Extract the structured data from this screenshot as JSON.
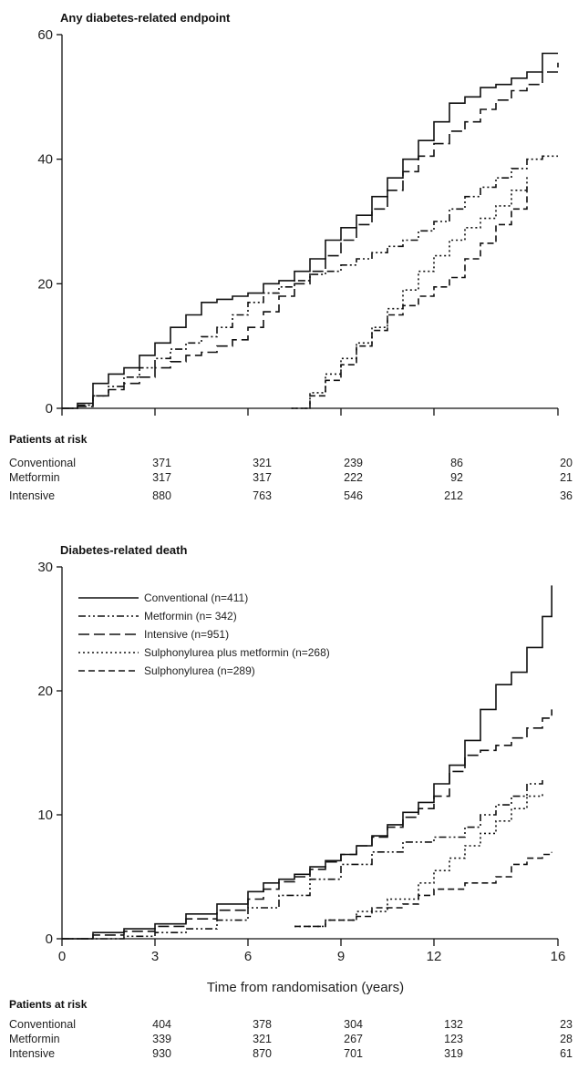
{
  "chart_data": [
    {
      "type": "line",
      "title": "Any diabetes-related endpoint",
      "xlabel": "",
      "ylabel": "",
      "xlim": [
        0,
        16
      ],
      "ylim": [
        0,
        60
      ],
      "yticks": [
        0,
        20,
        40,
        60
      ],
      "xtick_values": [
        0,
        3,
        6,
        9,
        12,
        16
      ],
      "xtick_labels": [],
      "series": [
        {
          "key": "conventional",
          "dash": "",
          "x": [
            0,
            0.5,
            1,
            1.5,
            2,
            2.5,
            3,
            3.5,
            4,
            4.5,
            5,
            5.5,
            6,
            6.5,
            7,
            7.5,
            8,
            8.5,
            9,
            9.5,
            10,
            10.5,
            11,
            11.5,
            12,
            12.5,
            13,
            13.5,
            14,
            14.5,
            15,
            15.5,
            16
          ],
          "y": [
            0,
            0.8,
            4,
            5.5,
            6.5,
            8.5,
            10.5,
            13,
            15,
            17,
            17.5,
            18,
            18.5,
            20,
            20.5,
            22,
            24,
            27,
            29,
            31,
            34,
            37,
            40,
            43,
            46,
            49,
            50,
            51.5,
            52,
            53,
            54,
            57,
            57
          ]
        },
        {
          "key": "metformin",
          "dash": "8,3,2,3,2,3",
          "x": [
            0,
            0.5,
            1,
            1.5,
            2,
            2.5,
            3,
            3.5,
            4,
            4.5,
            5,
            5.5,
            6,
            6.5,
            7,
            7.5,
            8,
            8.5,
            9,
            9.5,
            10,
            10.5,
            11,
            11.5,
            12,
            12.5,
            13,
            13.5,
            14,
            14.5,
            15,
            15.5,
            16
          ],
          "y": [
            0,
            0.5,
            2,
            3.5,
            5,
            6.5,
            8,
            9.5,
            10.5,
            11.5,
            13,
            15,
            17,
            18.5,
            19.5,
            20.5,
            21.5,
            22,
            23,
            24,
            25,
            26,
            27,
            28.5,
            30,
            32,
            34,
            35.5,
            37,
            38.5,
            40,
            40.5,
            40.5
          ]
        },
        {
          "key": "intensive",
          "dash": "12,5",
          "x": [
            0,
            0.5,
            1,
            1.5,
            2,
            2.5,
            3,
            3.5,
            4,
            4.5,
            5,
            5.5,
            6,
            6.5,
            7,
            7.5,
            8,
            8.5,
            9,
            9.5,
            10,
            10.5,
            11,
            11.5,
            12,
            12.5,
            13,
            13.5,
            14,
            14.5,
            15,
            15.5,
            16
          ],
          "y": [
            0,
            0.3,
            2,
            3,
            4,
            5,
            6.5,
            7.5,
            8.5,
            9,
            10,
            11,
            13,
            15.5,
            18,
            20,
            22,
            24.5,
            27,
            29.5,
            32,
            35,
            38,
            40.5,
            42.5,
            44.5,
            46,
            48,
            49.5,
            51,
            52,
            54,
            55.5
          ]
        },
        {
          "key": "sulph_metformin",
          "dash": "2,3",
          "x": [
            7.4,
            8,
            8.5,
            9,
            9.5,
            10,
            10.5,
            11,
            11.5,
            12,
            12.5,
            13,
            13.5,
            14,
            14.5,
            15
          ],
          "y": [
            0,
            2.5,
            5.5,
            8,
            10.5,
            13,
            16,
            19,
            22,
            24.5,
            27,
            29,
            30.5,
            32.5,
            35,
            37.5
          ]
        },
        {
          "key": "sulphonylurea",
          "dash": "7,4",
          "x": [
            7.4,
            8,
            8.5,
            9,
            9.5,
            10,
            10.5,
            11,
            11.5,
            12,
            12.5,
            13,
            13.5,
            14,
            14.5,
            15
          ],
          "y": [
            0,
            2,
            4.5,
            7,
            10,
            12.5,
            15,
            16.5,
            18,
            19.5,
            21,
            24,
            26.5,
            29.5,
            32,
            35.5
          ]
        }
      ],
      "risk_table": {
        "heading": "Patients at risk",
        "x": [
          3,
          6,
          9,
          12,
          16
        ],
        "rows": [
          {
            "label": "Conventional",
            "values": [
              "371",
              "321",
              "239",
              "86",
              "20"
            ]
          },
          {
            "label": "Metformin",
            "values": [
              "317",
              "317",
              "222",
              "92",
              "21"
            ]
          },
          {
            "label": "Intensive",
            "values": [
              "880",
              "763",
              "546",
              "212",
              "36"
            ]
          }
        ]
      }
    },
    {
      "type": "line",
      "title": "Diabetes-related death",
      "xlabel": "Time from randomisation (years)",
      "ylabel": "",
      "xlim": [
        0,
        16
      ],
      "ylim": [
        0,
        30
      ],
      "yticks": [
        0,
        10,
        20,
        30
      ],
      "xtick_values": [
        0,
        3,
        6,
        9,
        12,
        16
      ],
      "xtick_labels": [
        "0",
        "3",
        "6",
        "9",
        "12",
        "16"
      ],
      "legend": [
        {
          "key": "conventional",
          "label": "Conventional (n=411)"
        },
        {
          "key": "metformin",
          "label": "Metformin (n= 342)"
        },
        {
          "key": "intensive",
          "label": "Intensive (n=951)"
        },
        {
          "key": "sulph_metformin",
          "label": "Sulphonylurea plus metformin (n=268)"
        },
        {
          "key": "sulphonylurea",
          "label": "Sulphonylurea (n=289)"
        }
      ],
      "series": [
        {
          "key": "conventional",
          "dash": "",
          "x": [
            0,
            1,
            2,
            3,
            4,
            5,
            6,
            6.5,
            7,
            7.5,
            8,
            8.5,
            9,
            9.5,
            10,
            10.5,
            11,
            11.5,
            12,
            12.5,
            13,
            13.5,
            14,
            14.5,
            15,
            15.5,
            15.8
          ],
          "y": [
            0,
            0.5,
            0.8,
            1.2,
            2,
            2.8,
            3.8,
            4.5,
            4.8,
            5.2,
            5.8,
            6.3,
            6.8,
            7.5,
            8.3,
            9.2,
            10.2,
            11,
            12.5,
            14,
            16,
            18.5,
            20.5,
            21.5,
            23.5,
            26,
            28.5
          ]
        },
        {
          "key": "metformin",
          "dash": "8,3,2,3,2,3",
          "x": [
            0,
            2,
            3,
            4,
            5,
            6,
            7,
            8,
            9,
            10,
            11,
            12,
            13,
            13.5,
            14,
            14.5,
            15,
            15.5
          ],
          "y": [
            0,
            0.2,
            0.5,
            0.8,
            1.5,
            2.5,
            3.5,
            4.8,
            6,
            7,
            7.8,
            8.2,
            9,
            10,
            10.8,
            11.5,
            12.5,
            12.8
          ]
        },
        {
          "key": "intensive",
          "dash": "12,5",
          "x": [
            0,
            1,
            2,
            3,
            4,
            5,
            6,
            6.5,
            7,
            7.5,
            8,
            8.5,
            9,
            9.5,
            10,
            10.5,
            11,
            11.5,
            12,
            12.5,
            13,
            13.5,
            14,
            14.5,
            15,
            15.5,
            15.8
          ],
          "y": [
            0,
            0.3,
            0.6,
            1,
            1.6,
            2.3,
            3.2,
            4,
            4.6,
            5,
            5.6,
            6.2,
            6.8,
            7.5,
            8.2,
            9,
            9.8,
            10.5,
            11.5,
            13.5,
            14.8,
            15.2,
            15.6,
            16.2,
            17,
            17.8,
            18.5
          ]
        },
        {
          "key": "sulph_metformin",
          "dash": "2,3",
          "x": [
            7.5,
            8.5,
            9.5,
            10.5,
            11.5,
            12,
            12.5,
            13,
            13.5,
            14,
            14.5,
            15,
            15.5
          ],
          "y": [
            1,
            1.5,
            2.2,
            3.2,
            4.5,
            5.5,
            6.5,
            7.5,
            8.5,
            9.5,
            10.5,
            11.5,
            11.8
          ]
        },
        {
          "key": "sulphonylurea",
          "dash": "7,4",
          "x": [
            7.5,
            8.5,
            9.5,
            10,
            11,
            11.5,
            12,
            13,
            14,
            14.5,
            15,
            15.5,
            15.8
          ],
          "y": [
            1,
            1.5,
            1.8,
            2.5,
            2.8,
            3.5,
            4,
            4.5,
            5,
            6,
            6.5,
            6.8,
            7
          ]
        }
      ],
      "risk_table": {
        "heading": "Patients at risk",
        "x": [
          3,
          6,
          9,
          12,
          16
        ],
        "rows": [
          {
            "label": "Conventional",
            "values": [
              "404",
              "378",
              "304",
              "132",
              "23"
            ]
          },
          {
            "label": "Metformin",
            "values": [
              "339",
              "321",
              "267",
              "123",
              "28"
            ]
          },
          {
            "label": "Intensive",
            "values": [
              "930",
              "870",
              "701",
              "319",
              "61"
            ]
          }
        ]
      }
    }
  ]
}
